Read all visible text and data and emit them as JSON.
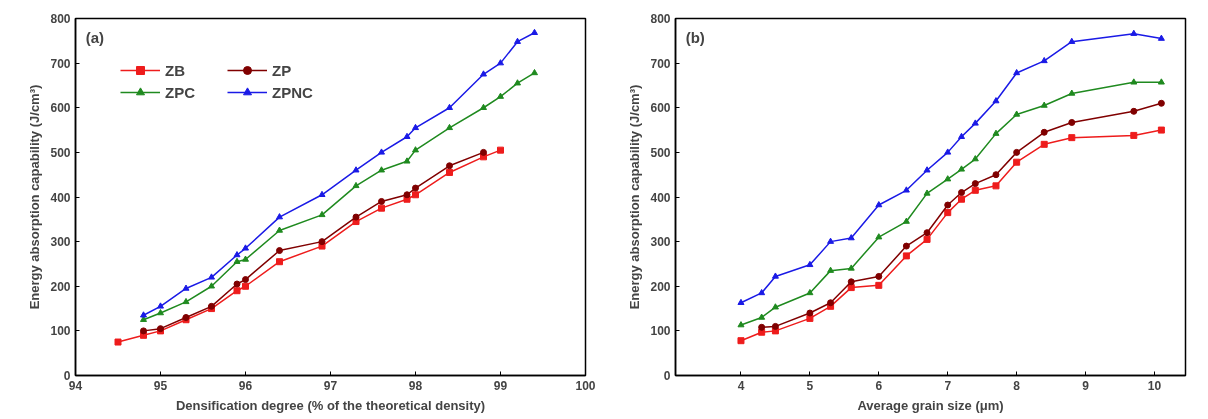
{
  "chart_data": [
    {
      "type": "line",
      "xlabel": "Densification degree (% of the theoretical density)",
      "ylabel": "Energy absorption capability (J/cm³)",
      "annotations": [
        "(a)"
      ],
      "xlim": [
        94,
        100
      ],
      "xticks": [
        94,
        95,
        96,
        97,
        98,
        99,
        100
      ],
      "ylim": [
        0,
        800
      ],
      "yticks": [
        0,
        100,
        200,
        300,
        400,
        500,
        600,
        700,
        800
      ],
      "grid": false,
      "legend": "top left",
      "series": [
        {
          "name": "ZB",
          "color": "#ee1c1c",
          "marker": "square",
          "x": [
            94.5,
            94.8,
            95.0,
            95.3,
            95.6,
            95.9,
            96.0,
            96.4,
            96.9,
            97.3,
            97.6,
            97.9,
            98.0,
            98.4,
            98.8,
            99.0
          ],
          "values": [
            75,
            90,
            100,
            125,
            150,
            190,
            200,
            255,
            290,
            345,
            375,
            395,
            405,
            455,
            490,
            505
          ]
        },
        {
          "name": "ZP",
          "color": "#800000",
          "marker": "circle",
          "x": [
            94.8,
            95.0,
            95.3,
            95.6,
            95.9,
            96.0,
            96.4,
            96.9,
            97.3,
            97.6,
            97.9,
            98.0,
            98.4,
            98.8
          ],
          "values": [
            100,
            105,
            130,
            155,
            205,
            215,
            280,
            300,
            355,
            390,
            405,
            420,
            470,
            500
          ]
        },
        {
          "name": "ZPC",
          "color": "#1f8a1f",
          "marker": "triangle",
          "x": [
            94.8,
            95.0,
            95.3,
            95.6,
            95.9,
            96.0,
            96.4,
            96.9,
            97.3,
            97.6,
            97.9,
            98.0,
            98.4,
            98.8,
            99.0,
            99.2,
            99.4
          ],
          "values": [
            125,
            140,
            165,
            200,
            255,
            260,
            325,
            360,
            425,
            460,
            480,
            505,
            555,
            600,
            625,
            655,
            678
          ]
        },
        {
          "name": "ZPNC",
          "color": "#1a1ae6",
          "marker": "triangle",
          "x": [
            94.8,
            95.0,
            95.3,
            95.6,
            95.9,
            96.0,
            96.4,
            96.9,
            97.3,
            97.6,
            97.9,
            98.0,
            98.4,
            98.8,
            99.0,
            99.2,
            99.4
          ],
          "values": [
            135,
            155,
            195,
            220,
            270,
            285,
            355,
            405,
            460,
            500,
            535,
            555,
            600,
            675,
            700,
            748,
            768
          ]
        }
      ]
    },
    {
      "type": "line",
      "xlabel": "Average grain size (μm)",
      "ylabel": "Energy absorption capability (J/cm³)",
      "annotations": [
        "(b)"
      ],
      "xlim": [
        3.05,
        10.45
      ],
      "xticks": [
        4,
        5,
        6,
        7,
        8,
        9,
        10
      ],
      "ylim": [
        0,
        800
      ],
      "yticks": [
        0,
        100,
        200,
        300,
        400,
        500,
        600,
        700,
        800
      ],
      "grid": false,
      "series": [
        {
          "color": "#ee1c1c",
          "marker": "square",
          "x": [
            4.0,
            4.3,
            4.5,
            5.0,
            5.3,
            5.6,
            6.0,
            6.4,
            6.7,
            7.0,
            7.2,
            7.4,
            7.7,
            8.0,
            8.4,
            8.8,
            9.7,
            10.1
          ],
          "values": [
            78,
            97,
            100,
            128,
            155,
            197,
            202,
            268,
            305,
            365,
            395,
            415,
            425,
            478,
            518,
            533,
            538,
            550
          ]
        },
        {
          "color": "#800000",
          "marker": "circle",
          "x": [
            4.3,
            4.5,
            5.0,
            5.3,
            5.6,
            6.0,
            6.4,
            6.7,
            7.0,
            7.2,
            7.4,
            7.7,
            8.0,
            8.4,
            8.8,
            9.7,
            10.1
          ],
          "values": [
            108,
            110,
            140,
            163,
            210,
            222,
            290,
            320,
            382,
            410,
            430,
            450,
            500,
            545,
            567,
            592,
            610
          ]
        },
        {
          "color": "#1f8a1f",
          "marker": "triangle",
          "x": [
            4.0,
            4.3,
            4.5,
            5.0,
            5.3,
            5.6,
            6.0,
            6.4,
            6.7,
            7.0,
            7.2,
            7.4,
            7.7,
            8.0,
            8.4,
            8.8,
            9.7,
            10.1
          ],
          "values": [
            113,
            130,
            153,
            185,
            235,
            240,
            310,
            345,
            408,
            440,
            462,
            485,
            542,
            585,
            605,
            632,
            657,
            657
          ]
        },
        {
          "color": "#1a1ae6",
          "marker": "triangle",
          "x": [
            4.0,
            4.3,
            4.5,
            5.0,
            5.3,
            5.6,
            6.0,
            6.4,
            6.7,
            7.0,
            7.2,
            7.4,
            7.7,
            8.0,
            8.4,
            8.8,
            9.7,
            10.1
          ],
          "values": [
            163,
            185,
            222,
            248,
            300,
            308,
            382,
            415,
            460,
            500,
            535,
            565,
            615,
            678,
            705,
            748,
            766,
            755
          ]
        }
      ]
    }
  ]
}
